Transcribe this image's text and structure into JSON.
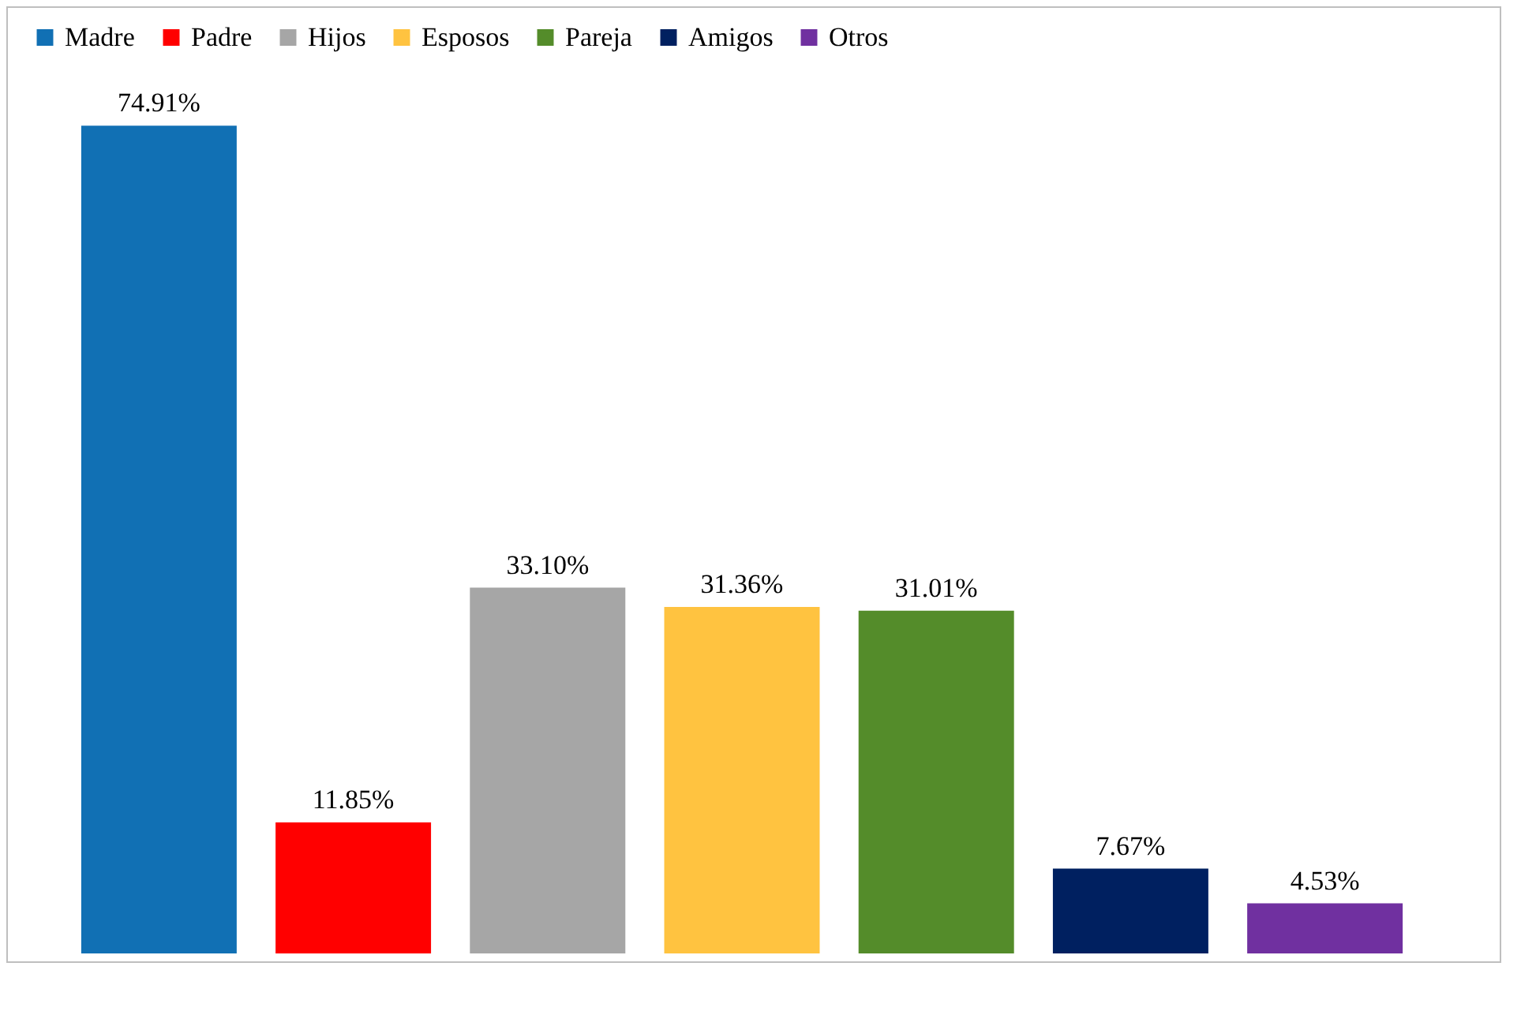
{
  "chart_data": {
    "type": "bar",
    "categories": [
      null
    ],
    "series": [
      {
        "name": "Madre",
        "color": "#1170b4",
        "values": [
          74.91
        ],
        "value_labels": [
          "74.91%"
        ]
      },
      {
        "name": "Padre",
        "color": "#ff0000",
        "values": [
          11.85
        ],
        "value_labels": [
          "11.85%"
        ]
      },
      {
        "name": "Hijos",
        "color": "#a6a6a6",
        "values": [
          33.1
        ],
        "value_labels": [
          "33.10%"
        ]
      },
      {
        "name": "Esposos",
        "color": "#ffc340",
        "values": [
          31.36
        ],
        "value_labels": [
          "31.36%"
        ]
      },
      {
        "name": "Pareja",
        "color": "#548c2a",
        "values": [
          31.01
        ],
        "value_labels": [
          "31.01%"
        ]
      },
      {
        "name": "Amigos",
        "color": "#002060",
        "values": [
          7.67
        ],
        "value_labels": [
          "7.67%"
        ]
      },
      {
        "name": "Otros",
        "color": "#7030a0",
        "values": [
          4.53
        ],
        "value_labels": [
          "4.53%"
        ]
      }
    ],
    "legend": "top",
    "tick_labels": false
  }
}
